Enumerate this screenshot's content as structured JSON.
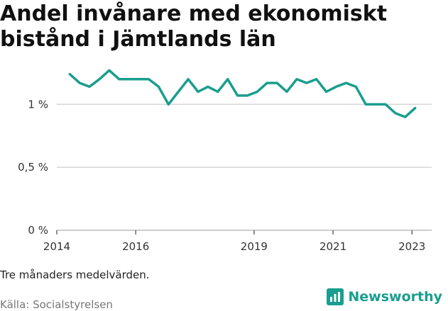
{
  "title": "Andel invånare med ekonomiskt bistånd i Jämtlands län",
  "note": "Tre månaders medelvärden.",
  "source": "Källa: Socialstyrelsen",
  "brand": "Newsworthy",
  "colors": {
    "line": "#1a9e8f",
    "grid": "#d6d6d6",
    "brand": "#1a9e8f"
  },
  "chart_data": {
    "type": "line",
    "title": "Andel invånare med ekonomiskt bistånd i Jämtlands län",
    "xlabel": "",
    "ylabel": "",
    "x_ticks": [
      {
        "label": "2014",
        "value": 2014
      },
      {
        "label": "2016",
        "value": 2016
      },
      {
        "label": "2019",
        "value": 2019
      },
      {
        "label": "2021",
        "value": 2021
      },
      {
        "label": "2023",
        "value": 2023
      }
    ],
    "y_ticks": [
      {
        "label": "0 %",
        "value": 0
      },
      {
        "label": "0,5 %",
        "value": 0.5
      },
      {
        "label": "1 %",
        "value": 1
      }
    ],
    "xlim": [
      2014,
      2023.5
    ],
    "ylim": [
      0,
      1.3
    ],
    "grid": true,
    "series": [
      {
        "x": [
          2014.33,
          2014.58,
          2014.83,
          2015.08,
          2015.33,
          2015.58,
          2015.83,
          2016.08,
          2016.33,
          2016.58,
          2016.83,
          2017.08,
          2017.33,
          2017.58,
          2017.83,
          2018.08,
          2018.33,
          2018.58,
          2018.83,
          2019.08,
          2019.33,
          2019.58,
          2019.83,
          2020.08,
          2020.33,
          2020.58,
          2020.83,
          2021.08,
          2021.33,
          2021.58,
          2021.83,
          2022.08,
          2022.33,
          2022.58,
          2022.83,
          2023.08
        ],
        "values": [
          1.24,
          1.17,
          1.14,
          1.2,
          1.27,
          1.2,
          1.2,
          1.2,
          1.2,
          1.14,
          1.0,
          1.1,
          1.2,
          1.1,
          1.14,
          1.1,
          1.2,
          1.07,
          1.07,
          1.1,
          1.17,
          1.17,
          1.1,
          1.2,
          1.17,
          1.2,
          1.1,
          1.14,
          1.17,
          1.14,
          1.0,
          1.0,
          1.0,
          0.93,
          0.9,
          0.97
        ]
      }
    ]
  }
}
